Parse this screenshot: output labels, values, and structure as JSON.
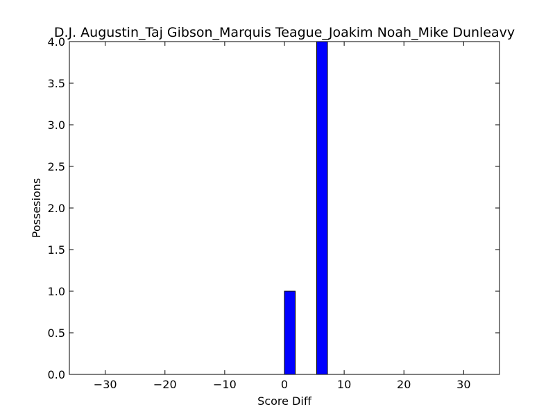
{
  "chart_data": {
    "type": "bar",
    "title": "D.J. Augustin_Taj Gibson_Marquis Teague_Joakim Noah_Mike Dunleavy",
    "xlabel": "Score Diff",
    "ylabel": "Possesions",
    "xlim": [
      -36,
      36
    ],
    "ylim": [
      0,
      4
    ],
    "xticks": [
      -30,
      -20,
      -10,
      0,
      10,
      20,
      30
    ],
    "xtick_labels": [
      "−30",
      "−20",
      "−10",
      "0",
      "10",
      "20",
      "30"
    ],
    "yticks": [
      0,
      0.5,
      1,
      1.5,
      2,
      2.5,
      3,
      3.5,
      4
    ],
    "ytick_labels": [
      "0.0",
      "0.5",
      "1.0",
      "1.5",
      "2.0",
      "2.5",
      "3.0",
      "3.5",
      "4.0"
    ],
    "bin_edges": [
      -36,
      -34.2,
      -32.4,
      -30.6,
      -28.8,
      -27,
      -25.2,
      -23.4,
      -21.6,
      -19.8,
      -18,
      -16.2,
      -14.4,
      -12.6,
      -10.8,
      -9,
      -7.2,
      -5.4,
      -3.6,
      -1.8,
      0,
      1.8,
      3.6,
      5.4,
      7.2,
      9,
      10.8,
      12.6,
      14.4,
      16.2,
      18,
      19.8,
      21.6,
      23.4,
      25.2,
      27,
      28.8,
      30.6,
      32.4,
      34.2,
      36
    ],
    "values": [
      0,
      0,
      0,
      0,
      0,
      0,
      0,
      0,
      0,
      0,
      0,
      0,
      0,
      0,
      0,
      0,
      0,
      0,
      0,
      0,
      1,
      0,
      0,
      4,
      0,
      0,
      0,
      0,
      0,
      0,
      0,
      0,
      0,
      0,
      0,
      0,
      0,
      0,
      0,
      0
    ],
    "bar_color": "#0000ff",
    "edge_color": "#000000",
    "grid": false
  }
}
